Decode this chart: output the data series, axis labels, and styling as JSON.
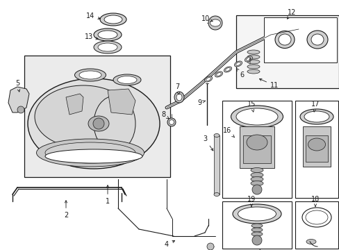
{
  "bg": "#ffffff",
  "fg": "#1a1a1a",
  "light_fill": "#e8e8e8",
  "mid_fill": "#d0d0d0",
  "figsize": [
    4.89,
    3.6
  ],
  "dpi": 100
}
